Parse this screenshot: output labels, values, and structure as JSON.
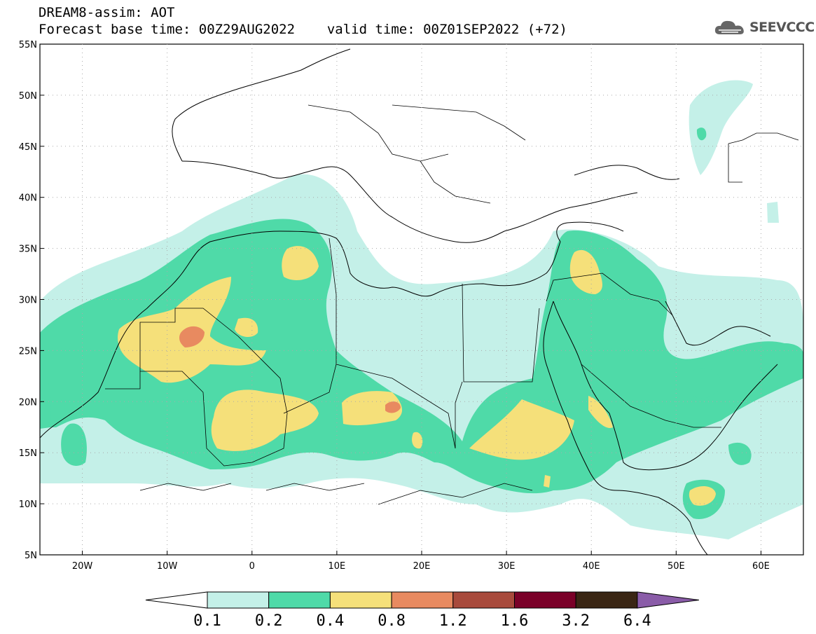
{
  "title": {
    "line1": "DREAM8-assim: AOT",
    "base_time_label": "Forecast base time: 00Z29AUG2022",
    "valid_time_label": "valid time: 00Z01SEP2022 (+72)"
  },
  "logo": {
    "text": "SEEVCCC",
    "icon": "cloud-icon"
  },
  "map": {
    "lon_range": [
      -25,
      65
    ],
    "lat_range": [
      5,
      55
    ],
    "lon_ticks": [
      {
        "value": -20,
        "label": "20W"
      },
      {
        "value": -10,
        "label": "10W"
      },
      {
        "value": 0,
        "label": "0"
      },
      {
        "value": 10,
        "label": "10E"
      },
      {
        "value": 20,
        "label": "20E"
      },
      {
        "value": 30,
        "label": "30E"
      },
      {
        "value": 40,
        "label": "40E"
      },
      {
        "value": 50,
        "label": "50E"
      },
      {
        "value": 60,
        "label": "60E"
      }
    ],
    "lat_ticks": [
      {
        "value": 55,
        "label": "55N"
      },
      {
        "value": 50,
        "label": "50N"
      },
      {
        "value": 45,
        "label": "45N"
      },
      {
        "value": 40,
        "label": "40N"
      },
      {
        "value": 35,
        "label": "35N"
      },
      {
        "value": 30,
        "label": "30N"
      },
      {
        "value": 25,
        "label": "25N"
      },
      {
        "value": 20,
        "label": "20N"
      },
      {
        "value": 15,
        "label": "15N"
      },
      {
        "value": 10,
        "label": "10N"
      },
      {
        "value": 5,
        "label": "5N"
      }
    ]
  },
  "colorbar": {
    "levels": [
      "0.1",
      "0.2",
      "0.4",
      "0.8",
      "1.2",
      "1.6",
      "3.2",
      "6.4"
    ],
    "colors": [
      "#ffffff",
      "#c4f0e8",
      "#4fdaa8",
      "#f5e07a",
      "#e88a60",
      "#a84a3c",
      "#7a0028",
      "#3a2614",
      "#8a5ca8"
    ]
  }
}
